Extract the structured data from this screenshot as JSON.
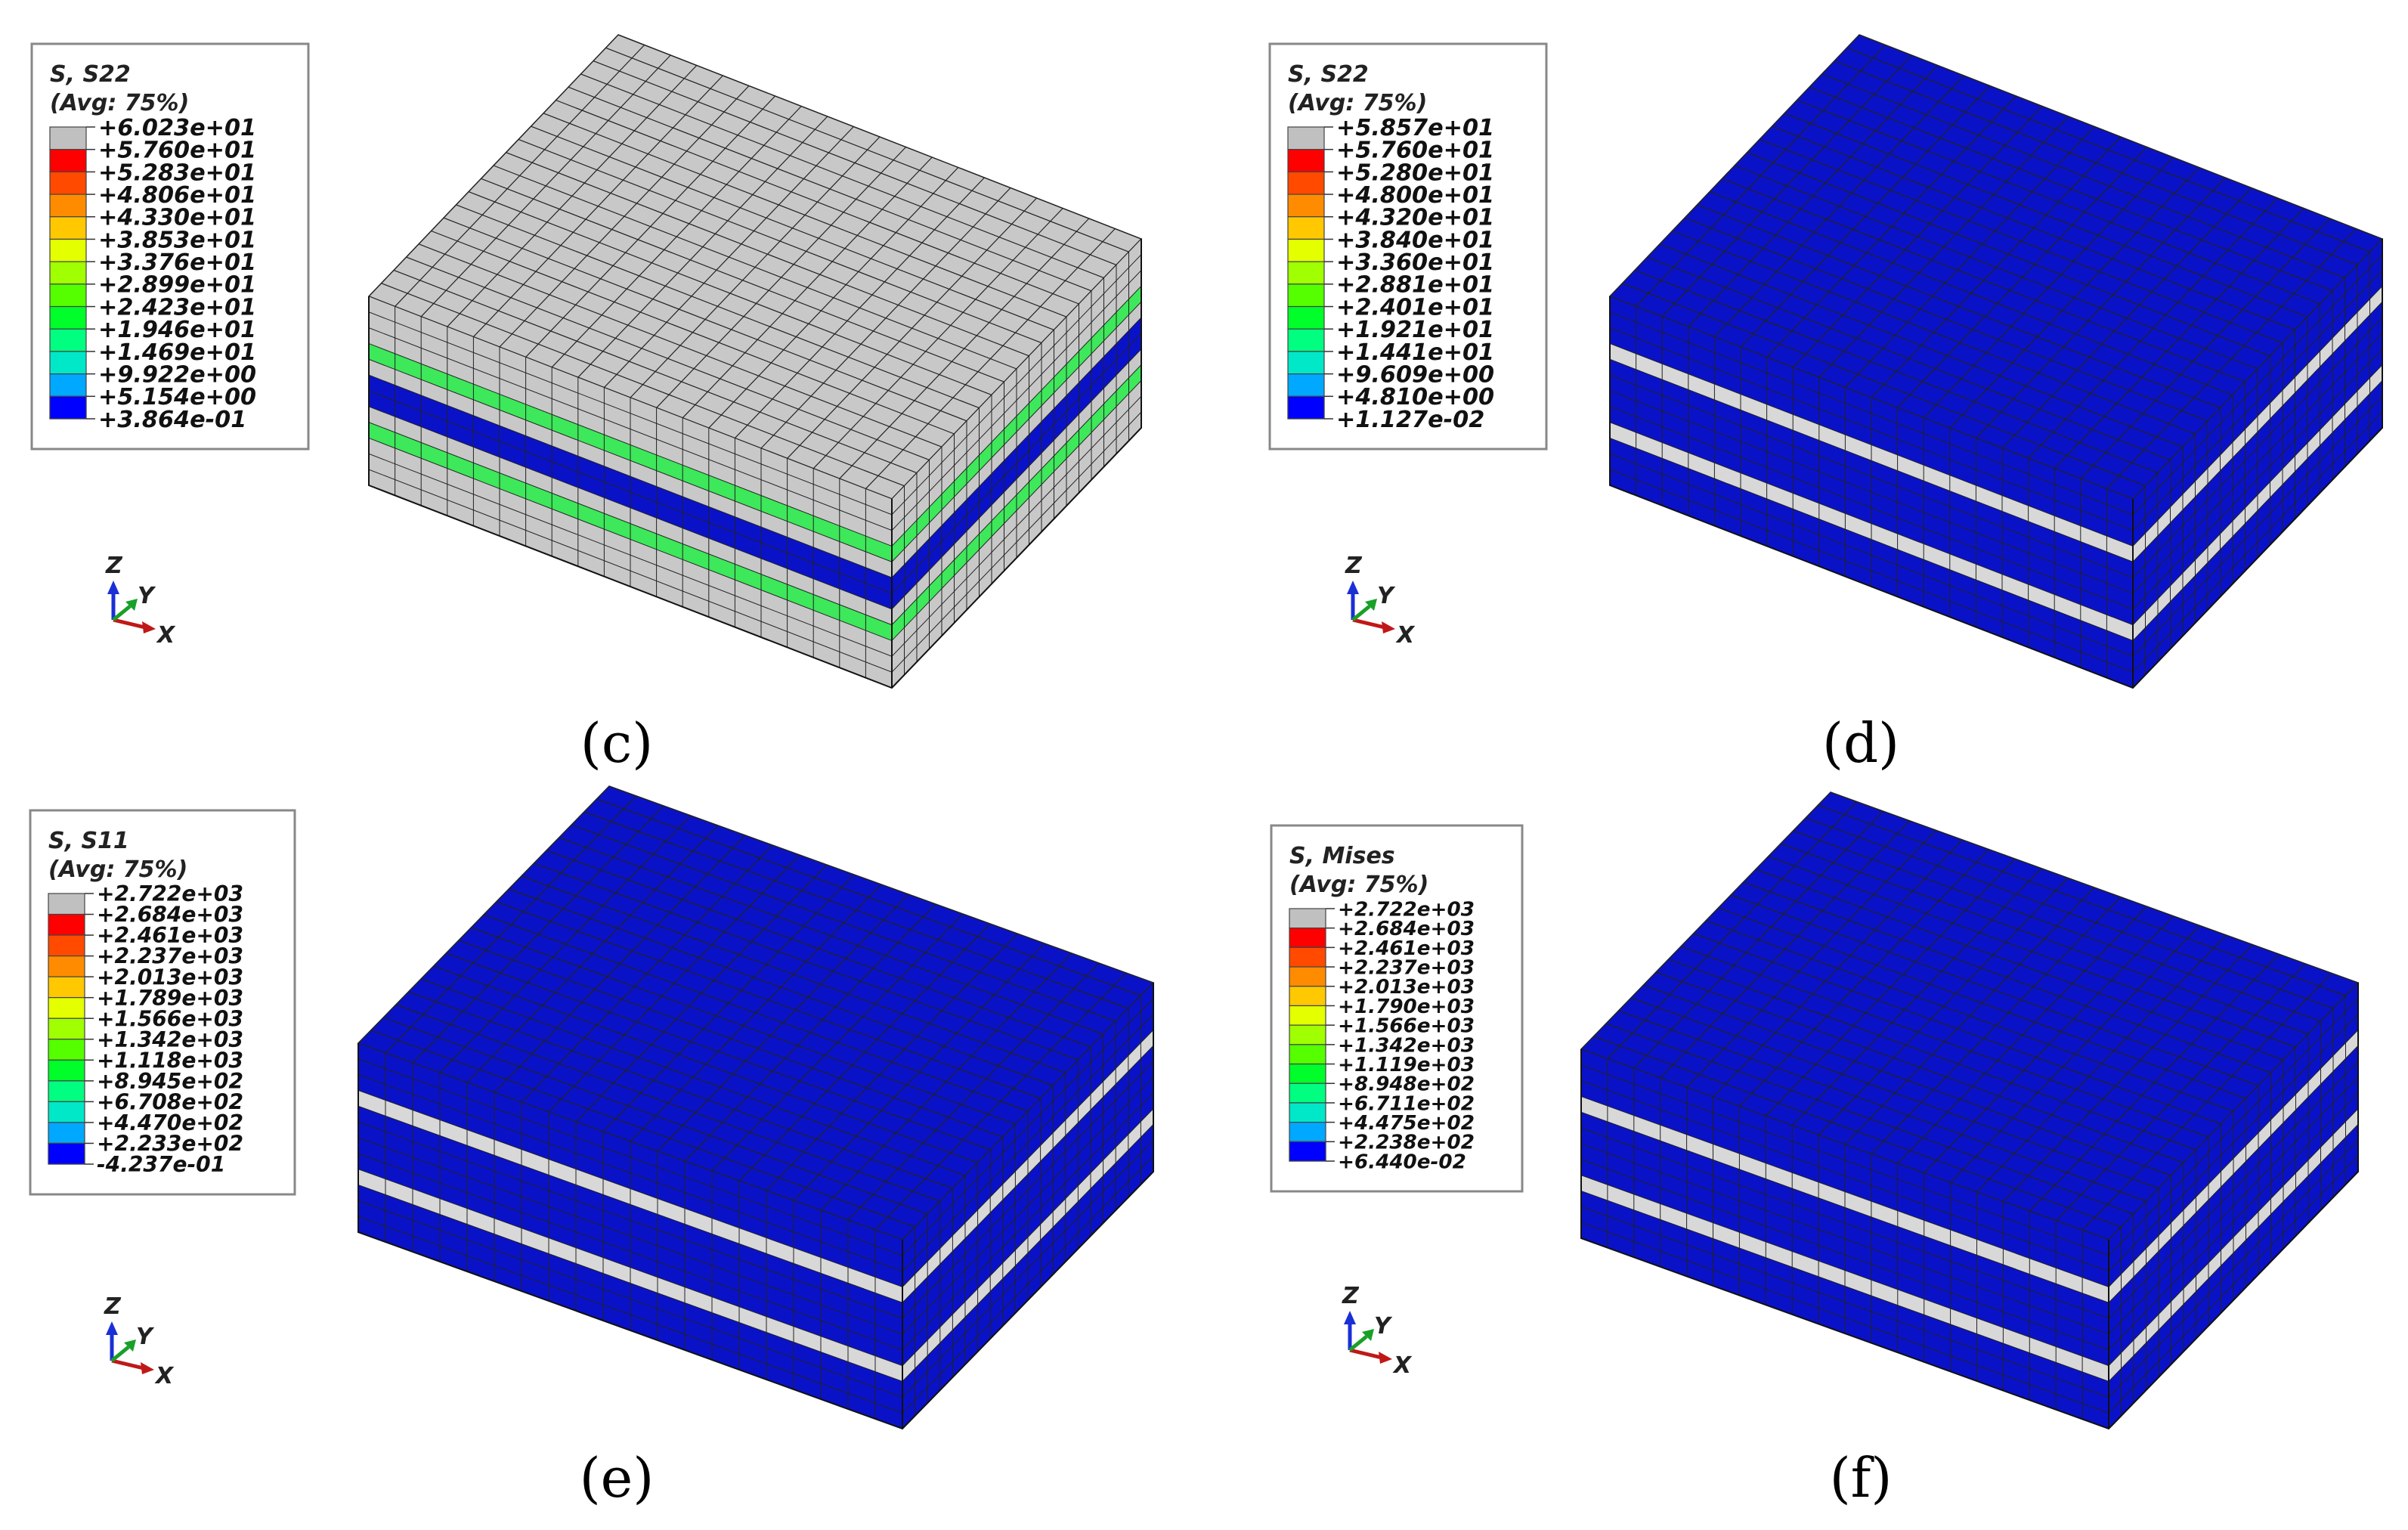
{
  "panels": [
    {
      "id": "c",
      "caption": "(c)",
      "legend": {
        "title": "S, S22",
        "subtitle": "(Avg: 75%)",
        "values": [
          "+6.023e+01",
          "+5.760e+01",
          "+5.283e+01",
          "+4.806e+01",
          "+4.330e+01",
          "+3.853e+01",
          "+3.376e+01",
          "+2.899e+01",
          "+2.423e+01",
          "+1.946e+01",
          "+1.469e+01",
          "+9.922e+00",
          "+5.154e+00",
          "+3.864e-01"
        ]
      },
      "triad": {
        "z": "Z",
        "y": "Y",
        "x": "X"
      },
      "block": {
        "top_color": "#c8c8c8",
        "side_bands": [
          "#c8c8c8",
          "#c8c8c8",
          "#c8c8c8",
          "#3de85a",
          "#c8c8c8",
          "#0a12c8",
          "#0a12c8",
          "#c8c8c8",
          "#3de85a",
          "#c8c8c8",
          "#c8c8c8",
          "#c8c8c8"
        ]
      }
    },
    {
      "id": "d",
      "caption": "(d)",
      "legend": {
        "title": "S, S22",
        "subtitle": "(Avg: 75%)",
        "values": [
          "+5.857e+01",
          "+5.760e+01",
          "+5.280e+01",
          "+4.800e+01",
          "+4.320e+01",
          "+3.840e+01",
          "+3.360e+01",
          "+2.881e+01",
          "+2.401e+01",
          "+1.921e+01",
          "+1.441e+01",
          "+9.609e+00",
          "+4.810e+00",
          "+1.127e-02"
        ]
      },
      "triad": {
        "z": "Z",
        "y": "Y",
        "x": "X"
      },
      "block": {
        "top_color": "#0a12c8",
        "side_bands": [
          "#0a12c8",
          "#0a12c8",
          "#0a12c8",
          "#d8d8d8",
          "#0a12c8",
          "#0a12c8",
          "#0a12c8",
          "#0a12c8",
          "#d8d8d8",
          "#0a12c8",
          "#0a12c8",
          "#0a12c8"
        ]
      }
    },
    {
      "id": "e",
      "caption": "(e)",
      "legend": {
        "title": "S, S11",
        "subtitle": "(Avg: 75%)",
        "values": [
          "+2.722e+03",
          "+2.684e+03",
          "+2.461e+03",
          "+2.237e+03",
          "+2.013e+03",
          "+1.789e+03",
          "+1.566e+03",
          "+1.342e+03",
          "+1.118e+03",
          "+8.945e+02",
          "+6.708e+02",
          "+4.470e+02",
          "+2.233e+02",
          "-4.237e-01"
        ]
      },
      "triad": {
        "z": "Z",
        "y": "Y",
        "x": "X"
      },
      "block": {
        "top_color": "#0a12c8",
        "side_bands": [
          "#0a12c8",
          "#0a12c8",
          "#0a12c8",
          "#d8d8d8",
          "#0a12c8",
          "#0a12c8",
          "#0a12c8",
          "#0a12c8",
          "#d8d8d8",
          "#0a12c8",
          "#0a12c8",
          "#0a12c8"
        ]
      }
    },
    {
      "id": "f",
      "caption": "(f)",
      "legend": {
        "title": "S, Mises",
        "subtitle": "(Avg: 75%)",
        "values": [
          "+2.722e+03",
          "+2.684e+03",
          "+2.461e+03",
          "+2.237e+03",
          "+2.013e+03",
          "+1.790e+03",
          "+1.566e+03",
          "+1.342e+03",
          "+1.119e+03",
          "+8.948e+02",
          "+6.711e+02",
          "+4.475e+02",
          "+2.238e+02",
          "+6.440e-02"
        ]
      },
      "triad": {
        "z": "Z",
        "y": "Y",
        "x": "X"
      },
      "block": {
        "top_color": "#0a12c8",
        "side_bands": [
          "#0a12c8",
          "#0a12c8",
          "#0a12c8",
          "#d8d8d8",
          "#0a12c8",
          "#0a12c8",
          "#0a12c8",
          "#0a12c8",
          "#d8d8d8",
          "#0a12c8",
          "#0a12c8",
          "#0a12c8"
        ]
      }
    }
  ],
  "colormap": [
    "#c0c0c0",
    "#ff0000",
    "#ff4a00",
    "#ff8c00",
    "#ffc800",
    "#e4ff00",
    "#a0ff00",
    "#55ff00",
    "#00ff2a",
    "#00ff80",
    "#00e8c8",
    "#00a8ff",
    "#0050ff",
    "#0000ff"
  ]
}
